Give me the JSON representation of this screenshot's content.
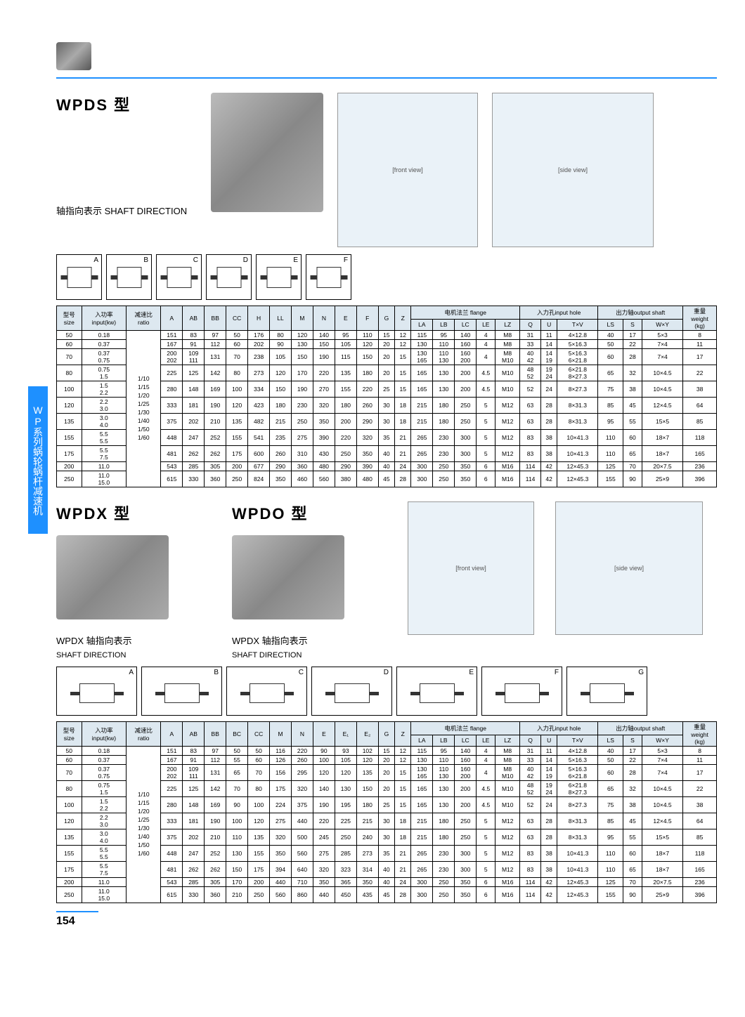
{
  "sidebar_label": "WP系列蜗轮蜗杆减速机",
  "section1": {
    "title": "WPDS  型",
    "shaft_label": "轴指向表示  SHAFT DIRECTION",
    "shaft_letters": [
      "A",
      "B",
      "C",
      "D",
      "E",
      "F"
    ]
  },
  "section2": {
    "title_left": "WPDX  型",
    "title_right": "WPDO  型",
    "shaft_label_left": "WPDX 轴指向表示",
    "shaft_sub_left": "SHAFT DIRECTION",
    "shaft_label_right": "WPDX 轴指向表示",
    "shaft_sub_right": "SHAFT DIRECTION",
    "shaft_letters": [
      "A",
      "B",
      "C",
      "D",
      "E",
      "F",
      "G"
    ]
  },
  "page_number": "154",
  "headers1": {
    "size": "型号\nsize",
    "input": "入功率\ninput(kw)",
    "ratio": "减速比\nratio",
    "group_flange": "电机法兰 flange",
    "group_input": "入力孔input hole",
    "group_output": "出力轴output shaft",
    "weight": "重量\nweight\n(kg)",
    "cols": [
      "A",
      "AB",
      "BB",
      "CC",
      "H",
      "LL",
      "M",
      "N",
      "E",
      "F",
      "G",
      "Z"
    ],
    "flange": [
      "LA",
      "LB",
      "LC",
      "LE",
      "LZ"
    ],
    "inhole": [
      "Q",
      "U",
      "T×V"
    ],
    "outshaft": [
      "LS",
      "S",
      "W×Y"
    ]
  },
  "headers2": {
    "cols": [
      "A",
      "AB",
      "BB",
      "BC",
      "CC",
      "M",
      "N",
      "E",
      "E₁",
      "E₂",
      "G",
      "Z"
    ]
  },
  "ratio_text": "1/10\n1/15\n1/20\n1/25\n1/30\n1/40\n1/50\n1/60",
  "table1_rows": [
    [
      "50",
      "0.18",
      "151",
      "83",
      "97",
      "50",
      "176",
      "80",
      "120",
      "140",
      "95",
      "110",
      "15",
      "12",
      "115",
      "95",
      "140",
      "4",
      "M8",
      "31",
      "11",
      "4×12.8",
      "40",
      "17",
      "5×3",
      "8"
    ],
    [
      "60",
      "0.37",
      "167",
      "91",
      "112",
      "60",
      "202",
      "90",
      "130",
      "150",
      "105",
      "120",
      "20",
      "12",
      "130",
      "110",
      "160",
      "4",
      "M8",
      "33",
      "14",
      "5×16.3",
      "50",
      "22",
      "7×4",
      "11"
    ],
    [
      "70",
      "0.37\n0.75",
      "200\n202",
      "109\n111",
      "131",
      "70",
      "238",
      "105",
      "150",
      "190",
      "115",
      "150",
      "20",
      "15",
      "130\n165",
      "110\n130",
      "160\n200",
      "4",
      "M8\nM10",
      "40\n42",
      "14\n19",
      "5×16.3\n6×21.8",
      "60",
      "28",
      "7×4",
      "17"
    ],
    [
      "80",
      "0.75\n1.5",
      "225",
      "125",
      "142",
      "80",
      "273",
      "120",
      "170",
      "220",
      "135",
      "180",
      "20",
      "15",
      "165",
      "130",
      "200",
      "4.5",
      "M10",
      "48\n52",
      "19\n24",
      "6×21.8\n8×27.3",
      "65",
      "32",
      "10×4.5",
      "22"
    ],
    [
      "100",
      "1.5\n2.2",
      "280",
      "148",
      "169",
      "100",
      "334",
      "150",
      "190",
      "270",
      "155",
      "220",
      "25",
      "15",
      "165",
      "130",
      "200",
      "4.5",
      "M10",
      "52",
      "24",
      "8×27.3",
      "75",
      "38",
      "10×4.5",
      "38"
    ],
    [
      "120",
      "2.2\n3.0",
      "333",
      "181",
      "190",
      "120",
      "423",
      "180",
      "230",
      "320",
      "180",
      "260",
      "30",
      "18",
      "215",
      "180",
      "250",
      "5",
      "M12",
      "63",
      "28",
      "8×31.3",
      "85",
      "45",
      "12×4.5",
      "64"
    ],
    [
      "135",
      "3.0\n4.0",
      "375",
      "202",
      "210",
      "135",
      "482",
      "215",
      "250",
      "350",
      "200",
      "290",
      "30",
      "18",
      "215",
      "180",
      "250",
      "5",
      "M12",
      "63",
      "28",
      "8×31.3",
      "95",
      "55",
      "15×5",
      "85"
    ],
    [
      "155",
      "5.5\n5.5",
      "448",
      "247",
      "252",
      "155",
      "541",
      "235",
      "275",
      "390",
      "220",
      "320",
      "35",
      "21",
      "265",
      "230",
      "300",
      "5",
      "M12",
      "83",
      "38",
      "10×41.3",
      "110",
      "60",
      "18×7",
      "118"
    ],
    [
      "175",
      "5.5\n7.5",
      "481",
      "262",
      "262",
      "175",
      "600",
      "260",
      "310",
      "430",
      "250",
      "350",
      "40",
      "21",
      "265",
      "230",
      "300",
      "5",
      "M12",
      "83",
      "38",
      "10×41.3",
      "110",
      "65",
      "18×7",
      "165"
    ],
    [
      "200",
      "11.0",
      "543",
      "285",
      "305",
      "200",
      "677",
      "290",
      "360",
      "480",
      "290",
      "390",
      "40",
      "24",
      "300",
      "250",
      "350",
      "6",
      "M16",
      "114",
      "42",
      "12×45.3",
      "125",
      "70",
      "20×7.5",
      "236"
    ],
    [
      "250",
      "11.0\n15.0",
      "615",
      "330",
      "360",
      "250",
      "824",
      "350",
      "460",
      "560",
      "380",
      "480",
      "45",
      "28",
      "300",
      "250",
      "350",
      "6",
      "M16",
      "114",
      "42",
      "12×45.3",
      "155",
      "90",
      "25×9",
      "396"
    ]
  ],
  "table2_rows": [
    [
      "50",
      "0.18",
      "151",
      "83",
      "97",
      "50",
      "50",
      "116",
      "220",
      "90",
      "93",
      "102",
      "15",
      "12",
      "115",
      "95",
      "140",
      "4",
      "M8",
      "31",
      "11",
      "4×12.8",
      "40",
      "17",
      "5×3",
      "8"
    ],
    [
      "60",
      "0.37",
      "167",
      "91",
      "112",
      "55",
      "60",
      "126",
      "260",
      "100",
      "105",
      "120",
      "20",
      "12",
      "130",
      "110",
      "160",
      "4",
      "M8",
      "33",
      "14",
      "5×16.3",
      "50",
      "22",
      "7×4",
      "11"
    ],
    [
      "70",
      "0.37\n0.75",
      "200\n202",
      "109\n111",
      "131",
      "65",
      "70",
      "156",
      "295",
      "120",
      "120",
      "135",
      "20",
      "15",
      "130\n165",
      "110\n130",
      "160\n200",
      "4",
      "M8\nM10",
      "40\n42",
      "14\n19",
      "5×16.3\n6×21.8",
      "60",
      "28",
      "7×4",
      "17"
    ],
    [
      "80",
      "0.75\n1.5",
      "225",
      "125",
      "142",
      "70",
      "80",
      "175",
      "320",
      "140",
      "130",
      "150",
      "20",
      "15",
      "165",
      "130",
      "200",
      "4.5",
      "M10",
      "48\n52",
      "19\n24",
      "6×21.8\n8×27.3",
      "65",
      "32",
      "10×4.5",
      "22"
    ],
    [
      "100",
      "1.5\n2.2",
      "280",
      "148",
      "169",
      "90",
      "100",
      "224",
      "375",
      "190",
      "195",
      "180",
      "25",
      "15",
      "165",
      "130",
      "200",
      "4.5",
      "M10",
      "52",
      "24",
      "8×27.3",
      "75",
      "38",
      "10×4.5",
      "38"
    ],
    [
      "120",
      "2.2\n3.0",
      "333",
      "181",
      "190",
      "100",
      "120",
      "275",
      "440",
      "220",
      "225",
      "215",
      "30",
      "18",
      "215",
      "180",
      "250",
      "5",
      "M12",
      "63",
      "28",
      "8×31.3",
      "85",
      "45",
      "12×4.5",
      "64"
    ],
    [
      "135",
      "3.0\n4.0",
      "375",
      "202",
      "210",
      "110",
      "135",
      "320",
      "500",
      "245",
      "250",
      "240",
      "30",
      "18",
      "215",
      "180",
      "250",
      "5",
      "M12",
      "63",
      "28",
      "8×31.3",
      "95",
      "55",
      "15×5",
      "85"
    ],
    [
      "155",
      "5.5\n5.5",
      "448",
      "247",
      "252",
      "130",
      "155",
      "350",
      "560",
      "275",
      "285",
      "273",
      "35",
      "21",
      "265",
      "230",
      "300",
      "5",
      "M12",
      "83",
      "38",
      "10×41.3",
      "110",
      "60",
      "18×7",
      "118"
    ],
    [
      "175",
      "5.5\n7.5",
      "481",
      "262",
      "262",
      "150",
      "175",
      "394",
      "640",
      "320",
      "323",
      "314",
      "40",
      "21",
      "265",
      "230",
      "300",
      "5",
      "M12",
      "83",
      "38",
      "10×41.3",
      "110",
      "65",
      "18×7",
      "165"
    ],
    [
      "200",
      "11.0",
      "543",
      "285",
      "305",
      "170",
      "200",
      "440",
      "710",
      "350",
      "365",
      "350",
      "40",
      "24",
      "300",
      "250",
      "350",
      "6",
      "M16",
      "114",
      "42",
      "12×45.3",
      "125",
      "70",
      "20×7.5",
      "236"
    ],
    [
      "250",
      "11.0\n15.0",
      "615",
      "330",
      "360",
      "210",
      "250",
      "560",
      "860",
      "440",
      "450",
      "435",
      "45",
      "28",
      "300",
      "250",
      "350",
      "6",
      "M16",
      "114",
      "42",
      "12×45.3",
      "155",
      "90",
      "25×9",
      "396"
    ]
  ]
}
